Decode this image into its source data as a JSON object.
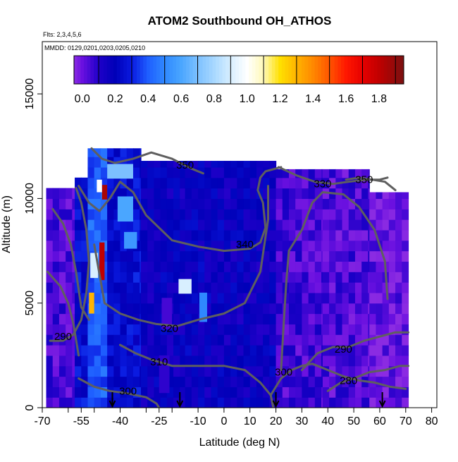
{
  "chart_data": {
    "type": "heatmap",
    "title": "ATOM2 Southbound OH_ATHOS",
    "note_flights": "Flts: 2,3,4,5,6",
    "note_dates": "MMDD: 0129,0201,0203,0205,0210",
    "xlabel": "Latitude (deg N)",
    "ylabel": "Altitude (m)",
    "xlim": [
      -70,
      82
    ],
    "ylim": [
      0,
      17500
    ],
    "x_ticks": [
      -70,
      -60,
      -55,
      -50,
      -40,
      -30,
      -25,
      -20,
      -10,
      0,
      10,
      20,
      30,
      40,
      50,
      60,
      70,
      80
    ],
    "x_tick_labels": [
      {
        "value": -70,
        "label": "-70"
      },
      {
        "value": -55,
        "label": "-55"
      },
      {
        "value": -40,
        "label": "-40"
      },
      {
        "value": -25,
        "label": "-25"
      },
      {
        "value": -10,
        "label": "-10"
      },
      {
        "value": 0,
        "label": "0"
      },
      {
        "value": 10,
        "label": "10"
      },
      {
        "value": 20,
        "label": "20"
      },
      {
        "value": 30,
        "label": "30"
      },
      {
        "value": 40,
        "label": "40"
      },
      {
        "value": 50,
        "label": "50"
      },
      {
        "value": 60,
        "label": "60"
      },
      {
        "value": 70,
        "label": "70"
      },
      {
        "value": 80,
        "label": "80"
      }
    ],
    "y_ticks": [
      {
        "value": 0,
        "label": "0"
      },
      {
        "value": 5000,
        "label": "5000"
      },
      {
        "value": 10000,
        "label": "10000"
      },
      {
        "value": 15000,
        "label": "15000"
      }
    ],
    "colorbar": {
      "range": [
        -0.05,
        1.95
      ],
      "tick_labels": [
        {
          "value": 0.0,
          "label": "0.0"
        },
        {
          "value": 0.2,
          "label": "0.2"
        },
        {
          "value": 0.4,
          "label": "0.4"
        },
        {
          "value": 0.6,
          "label": "0.6"
        },
        {
          "value": 0.8,
          "label": "0.8"
        },
        {
          "value": 1.0,
          "label": "1.0"
        },
        {
          "value": 1.2,
          "label": "1.2"
        },
        {
          "value": 1.4,
          "label": "1.4"
        },
        {
          "value": 1.6,
          "label": "1.6"
        },
        {
          "value": 1.8,
          "label": "1.8"
        }
      ],
      "stops": [
        {
          "value": -0.05,
          "color": "#8b2be2"
        },
        {
          "value": 0.0,
          "color": "#6a10e0"
        },
        {
          "value": 0.1,
          "color": "#1f00c8"
        },
        {
          "value": 0.2,
          "color": "#0000b8"
        },
        {
          "value": 0.3,
          "color": "#0a1ae0"
        },
        {
          "value": 0.4,
          "color": "#1f5fff"
        },
        {
          "value": 0.5,
          "color": "#2f88ff"
        },
        {
          "value": 0.6,
          "color": "#4aa6ff"
        },
        {
          "value": 0.7,
          "color": "#7cc0ff"
        },
        {
          "value": 0.8,
          "color": "#a8d8ff"
        },
        {
          "value": 0.9,
          "color": "#d8efff"
        },
        {
          "value": 1.0,
          "color": "#ffffff"
        },
        {
          "value": 1.1,
          "color": "#fff9b8"
        },
        {
          "value": 1.2,
          "color": "#ffe000"
        },
        {
          "value": 1.3,
          "color": "#ffb400"
        },
        {
          "value": 1.4,
          "color": "#ff8800"
        },
        {
          "value": 1.5,
          "color": "#ff5500"
        },
        {
          "value": 1.6,
          "color": "#ff1800"
        },
        {
          "value": 1.7,
          "color": "#e60000"
        },
        {
          "value": 1.8,
          "color": "#c00000"
        },
        {
          "value": 1.95,
          "color": "#7a1010"
        }
      ]
    },
    "cell_size": {
      "dlat": 2.5,
      "dalt": 500
    },
    "field_segments": [
      {
        "lat_min": -68.5,
        "lat_max": -57.5,
        "alt_min": 0,
        "alt_max": 10500,
        "value": 0.05
      },
      {
        "lat_min": -57.5,
        "lat_max": -52.5,
        "alt_min": 0,
        "alt_max": 11000,
        "value": 0.25
      },
      {
        "lat_min": -52.5,
        "lat_max": -45,
        "alt_min": 0,
        "alt_max": 12400,
        "value": 0.4
      },
      {
        "lat_min": -45,
        "lat_max": -32,
        "alt_min": 0,
        "alt_max": 12400,
        "value": 0.25
      },
      {
        "lat_min": -32,
        "lat_max": -15,
        "alt_min": 0,
        "alt_max": 11800,
        "value": 0.17
      },
      {
        "lat_min": -15,
        "lat_max": 0,
        "alt_min": 0,
        "alt_max": 11800,
        "value": 0.18
      },
      {
        "lat_min": 0,
        "lat_max": 20,
        "alt_min": 0,
        "alt_max": 11800,
        "value": 0.17
      },
      {
        "lat_min": 20,
        "lat_max": 38,
        "alt_min": 0,
        "alt_max": 11400,
        "value": 0.06
      },
      {
        "lat_min": 38,
        "lat_max": 56,
        "alt_min": 0,
        "alt_max": 11400,
        "value": 0.04
      },
      {
        "lat_min": 56,
        "lat_max": 71,
        "alt_min": 0,
        "alt_max": 10300,
        "value": 0.0
      }
    ],
    "hotspots": [
      {
        "lat": -51,
        "alt": 5000,
        "dlat": 2,
        "dalt": 1000,
        "value": 1.3
      },
      {
        "lat": -50,
        "alt": 6800,
        "dlat": 3,
        "dalt": 1200,
        "value": 0.9
      },
      {
        "lat": -47,
        "alt": 7000,
        "dlat": 2,
        "dalt": 1800,
        "value": 1.8
      },
      {
        "lat": -46,
        "alt": 10300,
        "dlat": 2,
        "dalt": 700,
        "value": 1.85
      },
      {
        "lat": -48,
        "alt": 10600,
        "dlat": 2,
        "dalt": 600,
        "value": 1.0
      },
      {
        "lat": -40,
        "alt": 11300,
        "dlat": 10,
        "dalt": 700,
        "value": 0.7
      },
      {
        "lat": -38,
        "alt": 9500,
        "dlat": 6,
        "dalt": 1200,
        "value": 0.6
      },
      {
        "lat": -36,
        "alt": 8000,
        "dlat": 5,
        "dalt": 800,
        "value": 0.55
      },
      {
        "lat": -15,
        "alt": 5800,
        "dlat": 5,
        "dalt": 700,
        "value": 0.9
      },
      {
        "lat": -22,
        "alt": 4500,
        "dlat": 4,
        "dalt": 1500,
        "value": 0.05
      },
      {
        "lat": -23,
        "alt": 1600,
        "dlat": 4,
        "dalt": 1800,
        "value": 0.08
      },
      {
        "lat": -8,
        "alt": 4800,
        "dlat": 3,
        "dalt": 1400,
        "value": 0.5
      }
    ],
    "contours": [
      {
        "label": "350",
        "label_at": [
          -15,
          11600
        ],
        "points": [
          [
            -51,
            12400
          ],
          [
            -47,
            11900
          ],
          [
            -42,
            11700
          ],
          [
            -35,
            11900
          ],
          [
            -28,
            12200
          ],
          [
            -20,
            11900
          ],
          [
            -12,
            11400
          ],
          [
            -8,
            11200
          ]
        ]
      },
      {
        "label": "340",
        "label_at": [
          8,
          7800
        ],
        "points": [
          [
            -56,
            10600
          ],
          [
            -52,
            9800
          ],
          [
            -48,
            9400
          ],
          [
            -44,
            10000
          ],
          [
            -40,
            10800
          ],
          [
            -35,
            10300
          ],
          [
            -30,
            9200
          ],
          [
            -25,
            8600
          ],
          [
            -20,
            8000
          ],
          [
            -10,
            7700
          ],
          [
            0,
            7500
          ],
          [
            10,
            7600
          ],
          [
            14,
            7900
          ],
          [
            16,
            8600
          ],
          [
            15,
            9800
          ],
          [
            13,
            10400
          ],
          [
            14,
            11000
          ],
          [
            16,
            11300
          ],
          [
            22,
            11500
          ]
        ]
      },
      {
        "label": "330",
        "label_at": [
          38,
          10700
        ],
        "points": [
          [
            21,
            11500
          ],
          [
            28,
            11100
          ],
          [
            35,
            10800
          ],
          [
            42,
            10700
          ],
          [
            48,
            10800
          ],
          [
            55,
            10900
          ],
          [
            60,
            10900
          ],
          [
            63,
            11000
          ]
        ]
      },
      {
        "label": "350",
        "label_at": [
          54,
          10900
        ],
        "points": [
          [
            47,
            10900
          ],
          [
            52,
            11000
          ],
          [
            57,
            10900
          ],
          [
            62,
            10800
          ],
          [
            66,
            10400
          ]
        ]
      },
      {
        "label": "320",
        "label_at": [
          -21,
          3800
        ],
        "points": [
          [
            -50,
            7800
          ],
          [
            -48,
            6400
          ],
          [
            -46,
            5000
          ],
          [
            -40,
            4500
          ],
          [
            -33,
            4200
          ],
          [
            -26,
            4000
          ],
          [
            -18,
            3900
          ],
          [
            -10,
            4200
          ],
          [
            0,
            4500
          ],
          [
            8,
            5000
          ],
          [
            14,
            6500
          ],
          [
            17,
            9000
          ],
          [
            17,
            10600
          ]
        ]
      },
      {
        "label": "310",
        "label_at": [
          -25,
          2200
        ],
        "points": [
          [
            -40,
            3000
          ],
          [
            -34,
            2600
          ],
          [
            -28,
            2300
          ],
          [
            -20,
            2000
          ],
          [
            -10,
            2000
          ],
          [
            0,
            2000
          ],
          [
            8,
            1800
          ],
          [
            14,
            1200
          ],
          [
            18,
            600
          ],
          [
            19,
            0
          ]
        ]
      },
      {
        "label": "300",
        "label_at": [
          -37,
          800
        ],
        "points": [
          [
            -56,
            1400
          ],
          [
            -50,
            1000
          ],
          [
            -44,
            800
          ],
          [
            -38,
            700
          ],
          [
            -30,
            500
          ],
          [
            -26,
            200
          ],
          [
            -25,
            0
          ]
        ]
      },
      {
        "label": "300",
        "label_at": [
          23,
          1700
        ],
        "points": [
          [
            18,
            600
          ],
          [
            22,
            1400
          ],
          [
            26,
            1800
          ],
          [
            30,
            2000
          ],
          [
            34,
            2100
          ],
          [
            40,
            1800
          ],
          [
            46,
            1500
          ],
          [
            52,
            1300
          ],
          [
            58,
            1200
          ],
          [
            64,
            1000
          ],
          [
            70,
            900
          ]
        ]
      },
      {
        "label": "290",
        "label_at": [
          -62,
          3400
        ],
        "points": [
          [
            -67,
            3200
          ],
          [
            -62,
            3200
          ],
          [
            -58,
            3500
          ],
          [
            -55,
            4200
          ],
          [
            -53,
            5500
          ],
          [
            -52,
            7000
          ],
          [
            -53,
            8500
          ],
          [
            -55,
            9800
          ],
          [
            -57,
            10500
          ]
        ]
      },
      {
        "label": "290",
        "label_at": [
          46,
          2800
        ],
        "points": [
          [
            30,
            1800
          ],
          [
            36,
            2600
          ],
          [
            42,
            2900
          ],
          [
            48,
            2900
          ],
          [
            54,
            3200
          ],
          [
            60,
            3400
          ],
          [
            66,
            3600
          ],
          [
            71,
            3600
          ]
        ]
      },
      {
        "label": "280",
        "label_at": [
          48,
          1300
        ],
        "points": [
          [
            40,
            800
          ],
          [
            45,
            1200
          ],
          [
            50,
            1400
          ],
          [
            56,
            1700
          ],
          [
            62,
            1800
          ],
          [
            68,
            2000
          ],
          [
            71,
            2000
          ]
        ]
      },
      {
        "label": "",
        "label_at": null,
        "points": [
          [
            -68,
            6500
          ],
          [
            -63,
            5800
          ],
          [
            -60,
            5000
          ],
          [
            -58,
            4000
          ],
          [
            -56,
            2500
          ]
        ]
      },
      {
        "label": "",
        "label_at": null,
        "points": [
          [
            -66,
            9500
          ],
          [
            -62,
            8800
          ],
          [
            -59,
            7800
          ],
          [
            -57,
            6500
          ],
          [
            -55,
            4800
          ],
          [
            -52,
            4200
          ]
        ]
      },
      {
        "label": "",
        "label_at": null,
        "points": [
          [
            22,
            1800
          ],
          [
            23,
            4000
          ],
          [
            24,
            6000
          ],
          [
            25,
            7500
          ],
          [
            30,
            8500
          ],
          [
            34,
            9800
          ],
          [
            38,
            10300
          ],
          [
            46,
            10200
          ],
          [
            52,
            9600
          ],
          [
            58,
            8500
          ],
          [
            62,
            7000
          ],
          [
            63,
            5200
          ]
        ]
      }
    ],
    "arrows": [
      {
        "lat": -43,
        "label": ""
      },
      {
        "lat": -17,
        "label": ""
      },
      {
        "lat": 20,
        "label": ""
      },
      {
        "lat": 61,
        "label": ""
      }
    ]
  }
}
